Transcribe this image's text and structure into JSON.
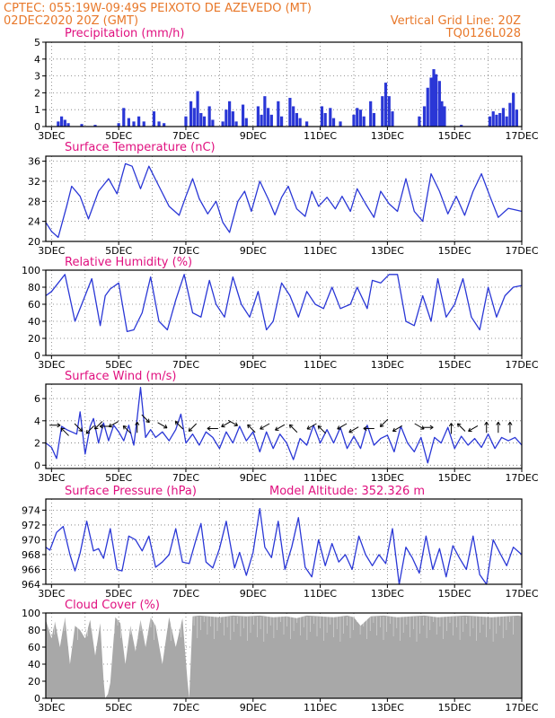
{
  "header": {
    "line1_left": "CPTEC:   055:19W-09:49S   PEIXOTO DE AZEVEDO (MT)",
    "line2_left": "02DEC2020 20Z (GMT)",
    "line2_right": "Vertical Grid Line: 20Z",
    "line3_right": "TQ0126L028"
  },
  "colors": {
    "header": "#e8782a",
    "title": "#e0107f",
    "series": "#2a37d6",
    "cloud": "#a8a8a8",
    "arrow": "#000000"
  },
  "x_axis": {
    "start_day": 2.83,
    "end_day": 17.0,
    "ticks": [
      {
        "day": 3,
        "label": "3DEC"
      },
      {
        "day": 5,
        "label": "5DEC"
      },
      {
        "day": 7,
        "label": "7DEC"
      },
      {
        "day": 9,
        "label": "9DEC"
      },
      {
        "day": 11,
        "label": "11DEC"
      },
      {
        "day": 13,
        "label": "13DEC"
      },
      {
        "day": 15,
        "label": "15DEC"
      },
      {
        "day": 17,
        "label": "17DEC"
      }
    ]
  },
  "chart_data": [
    {
      "id": "precip",
      "type": "bar",
      "title": "Precipitation (mm/h)",
      "ylim": [
        0,
        5
      ],
      "yticks": [
        0,
        1,
        2,
        3,
        4,
        5
      ],
      "bars": [
        [
          3.2,
          0.3
        ],
        [
          3.3,
          0.6
        ],
        [
          3.4,
          0.4
        ],
        [
          3.5,
          0.2
        ],
        [
          3.9,
          0.15
        ],
        [
          4.3,
          0.1
        ],
        [
          5.0,
          0.2
        ],
        [
          5.15,
          1.1
        ],
        [
          5.3,
          0.5
        ],
        [
          5.45,
          0.3
        ],
        [
          5.6,
          0.6
        ],
        [
          5.75,
          0.3
        ],
        [
          6.05,
          0.9
        ],
        [
          6.2,
          0.3
        ],
        [
          6.35,
          0.2
        ],
        [
          7.0,
          0.6
        ],
        [
          7.15,
          1.5
        ],
        [
          7.25,
          1.1
        ],
        [
          7.35,
          2.1
        ],
        [
          7.45,
          0.8
        ],
        [
          7.55,
          0.6
        ],
        [
          7.7,
          1.2
        ],
        [
          7.8,
          0.4
        ],
        [
          8.1,
          0.3
        ],
        [
          8.2,
          1.0
        ],
        [
          8.3,
          1.5
        ],
        [
          8.4,
          0.9
        ],
        [
          8.5,
          0.3
        ],
        [
          8.7,
          1.3
        ],
        [
          8.8,
          0.5
        ],
        [
          9.15,
          1.2
        ],
        [
          9.25,
          0.7
        ],
        [
          9.35,
          1.8
        ],
        [
          9.45,
          1.1
        ],
        [
          9.55,
          0.7
        ],
        [
          9.75,
          1.5
        ],
        [
          9.85,
          0.6
        ],
        [
          10.1,
          1.7
        ],
        [
          10.2,
          1.2
        ],
        [
          10.3,
          0.8
        ],
        [
          10.4,
          0.5
        ],
        [
          10.6,
          0.3
        ],
        [
          11.05,
          1.2
        ],
        [
          11.15,
          0.8
        ],
        [
          11.3,
          1.1
        ],
        [
          11.4,
          0.5
        ],
        [
          11.6,
          0.3
        ],
        [
          12.0,
          0.7
        ],
        [
          12.1,
          1.1
        ],
        [
          12.2,
          1.0
        ],
        [
          12.3,
          0.6
        ],
        [
          12.5,
          1.5
        ],
        [
          12.6,
          0.8
        ],
        [
          12.85,
          1.8
        ],
        [
          12.95,
          2.6
        ],
        [
          13.05,
          1.8
        ],
        [
          13.15,
          0.9
        ],
        [
          13.95,
          0.6
        ],
        [
          14.1,
          1.2
        ],
        [
          14.2,
          2.3
        ],
        [
          14.3,
          2.9
        ],
        [
          14.38,
          3.4
        ],
        [
          14.45,
          3.1
        ],
        [
          14.55,
          2.7
        ],
        [
          14.62,
          1.5
        ],
        [
          14.7,
          1.2
        ],
        [
          15.2,
          0.1
        ],
        [
          16.05,
          0.6
        ],
        [
          16.15,
          0.9
        ],
        [
          16.25,
          0.7
        ],
        [
          16.35,
          0.8
        ],
        [
          16.45,
          1.1
        ],
        [
          16.55,
          0.6
        ],
        [
          16.65,
          1.4
        ],
        [
          16.75,
          2.0
        ],
        [
          16.85,
          1.0
        ]
      ]
    },
    {
      "id": "temp",
      "type": "line",
      "title": "Surface Temperature (nC)",
      "ylim": [
        20,
        37
      ],
      "yticks": [
        20,
        24,
        28,
        32,
        36
      ],
      "x": [
        2.83,
        3.0,
        3.2,
        3.45,
        3.6,
        3.85,
        4.1,
        4.4,
        4.7,
        4.95,
        5.2,
        5.4,
        5.65,
        5.9,
        6.2,
        6.5,
        6.8,
        7.0,
        7.2,
        7.4,
        7.65,
        7.9,
        8.1,
        8.3,
        8.55,
        8.75,
        8.95,
        9.2,
        9.45,
        9.65,
        9.85,
        10.05,
        10.3,
        10.55,
        10.75,
        10.95,
        11.2,
        11.45,
        11.65,
        11.9,
        12.1,
        12.35,
        12.6,
        12.8,
        13.05,
        13.3,
        13.55,
        13.8,
        14.05,
        14.3,
        14.55,
        14.8,
        15.05,
        15.3,
        15.55,
        15.8,
        16.05,
        16.3,
        16.6,
        16.8,
        17.0
      ],
      "y": [
        23.8,
        22.0,
        20.8,
        27.0,
        31.0,
        29.0,
        24.5,
        30.0,
        32.5,
        29.5,
        35.5,
        35.0,
        30.5,
        35.0,
        31.0,
        27.0,
        25.2,
        29.0,
        32.5,
        28.5,
        25.5,
        28.0,
        23.8,
        21.8,
        28.0,
        30.0,
        26.0,
        32.0,
        28.5,
        25.3,
        28.8,
        31.0,
        26.5,
        25.0,
        30.0,
        27.0,
        28.8,
        26.5,
        29.0,
        26.0,
        30.5,
        27.5,
        24.8,
        30.0,
        27.5,
        26.0,
        32.5,
        26.0,
        24.0,
        33.5,
        30.0,
        25.5,
        29.0,
        25.2,
        30.0,
        33.5,
        29.0,
        24.8,
        26.6,
        26.3,
        26.0
      ]
    },
    {
      "id": "rh",
      "type": "line",
      "title": "Relative Humidity (%)",
      "ylim": [
        0,
        100
      ],
      "yticks": [
        0,
        20,
        40,
        60,
        80,
        100
      ],
      "x": [
        2.83,
        3.0,
        3.2,
        3.4,
        3.7,
        3.95,
        4.2,
        4.45,
        4.6,
        4.75,
        5.0,
        5.25,
        5.45,
        5.7,
        5.95,
        6.2,
        6.45,
        6.7,
        6.95,
        7.2,
        7.45,
        7.7,
        7.9,
        8.15,
        8.4,
        8.65,
        8.9,
        9.15,
        9.4,
        9.6,
        9.85,
        10.1,
        10.35,
        10.6,
        10.85,
        11.1,
        11.35,
        11.6,
        11.9,
        12.1,
        12.4,
        12.55,
        12.8,
        13.05,
        13.3,
        13.55,
        13.8,
        14.05,
        14.3,
        14.5,
        14.75,
        15.0,
        15.25,
        15.5,
        15.75,
        16.0,
        16.25,
        16.5,
        16.75,
        17.0
      ],
      "y": [
        70,
        75,
        85,
        95,
        40,
        65,
        90,
        35,
        70,
        78,
        85,
        28,
        30,
        50,
        92,
        40,
        30,
        65,
        95,
        50,
        45,
        88,
        60,
        45,
        92,
        60,
        45,
        75,
        30,
        40,
        85,
        70,
        45,
        75,
        60,
        55,
        80,
        55,
        60,
        80,
        55,
        88,
        85,
        95,
        95,
        40,
        35,
        70,
        40,
        90,
        45,
        60,
        90,
        45,
        30,
        80,
        45,
        70,
        80,
        82
      ]
    },
    {
      "id": "wind",
      "type": "line",
      "title": "Surface Wind (m/s)",
      "ylim": [
        -0.3,
        7.3
      ],
      "yticks": [
        0,
        2,
        4,
        6
      ],
      "x": [
        2.83,
        3.0,
        3.15,
        3.3,
        3.45,
        3.6,
        3.75,
        3.85,
        4.0,
        4.15,
        4.25,
        4.4,
        4.55,
        4.7,
        4.85,
        5.0,
        5.15,
        5.3,
        5.45,
        5.55,
        5.65,
        5.8,
        5.95,
        6.1,
        6.3,
        6.5,
        6.7,
        6.85,
        7.0,
        7.2,
        7.4,
        7.6,
        7.8,
        8.0,
        8.2,
        8.4,
        8.6,
        8.8,
        9.0,
        9.2,
        9.4,
        9.6,
        9.8,
        10.0,
        10.2,
        10.4,
        10.6,
        10.8,
        11.0,
        11.2,
        11.4,
        11.6,
        11.8,
        12.0,
        12.2,
        12.4,
        12.6,
        12.8,
        13.0,
        13.2,
        13.4,
        13.6,
        13.8,
        14.0,
        14.2,
        14.4,
        14.6,
        14.8,
        15.0,
        15.2,
        15.4,
        15.6,
        15.8,
        16.0,
        16.2,
        16.4,
        16.6,
        16.8,
        17.0
      ],
      "y": [
        2.0,
        1.6,
        0.6,
        3.5,
        3.2,
        3.0,
        2.8,
        4.8,
        1.0,
        3.5,
        4.2,
        2.0,
        3.8,
        2.2,
        3.6,
        3.0,
        2.2,
        3.6,
        1.8,
        4.2,
        7.0,
        2.5,
        3.2,
        2.5,
        3.0,
        2.2,
        3.2,
        4.6,
        2.0,
        2.8,
        1.8,
        3.0,
        2.5,
        1.5,
        3.0,
        2.0,
        3.5,
        2.2,
        3.0,
        1.2,
        3.0,
        1.5,
        2.8,
        2.0,
        0.5,
        2.4,
        1.8,
        3.6,
        2.0,
        3.2,
        2.0,
        3.4,
        1.5,
        2.6,
        1.5,
        3.6,
        1.8,
        2.4,
        2.7,
        1.2,
        3.5,
        2.0,
        1.2,
        2.5,
        0.2,
        2.5,
        2.0,
        3.4,
        1.5,
        2.6,
        1.8,
        2.4,
        1.6,
        2.8,
        1.5,
        2.5,
        2.2,
        2.5,
        1.8
      ],
      "arrows": [
        [
          3.1,
          3.6,
          0
        ],
        [
          3.4,
          3.0,
          135
        ],
        [
          3.8,
          3.4,
          -45
        ],
        [
          4.15,
          3.2,
          -135
        ],
        [
          4.4,
          3.6,
          -135
        ],
        [
          4.6,
          3.5,
          180
        ],
        [
          4.85,
          3.7,
          -150
        ],
        [
          5.25,
          3.2,
          135
        ],
        [
          5.55,
          3.4,
          90
        ],
        [
          5.8,
          4.2,
          -45
        ],
        [
          6.3,
          3.6,
          -30
        ],
        [
          6.8,
          3.6,
          135
        ],
        [
          7.2,
          3.4,
          -135
        ],
        [
          7.8,
          3.3,
          180
        ],
        [
          8.2,
          3.7,
          -150
        ],
        [
          8.4,
          3.8,
          -30
        ],
        [
          8.95,
          3.3,
          135
        ],
        [
          9.35,
          3.5,
          -150
        ],
        [
          9.8,
          3.4,
          -150
        ],
        [
          10.2,
          3.3,
          135
        ],
        [
          10.75,
          3.5,
          -150
        ],
        [
          11.05,
          3.2,
          135
        ],
        [
          11.65,
          3.5,
          -150
        ],
        [
          12.0,
          3.2,
          -150
        ],
        [
          12.45,
          3.3,
          180
        ],
        [
          12.9,
          3.8,
          -135
        ],
        [
          13.3,
          3.3,
          -150
        ],
        [
          13.95,
          3.5,
          -30
        ],
        [
          14.2,
          3.4,
          0
        ],
        [
          14.9,
          3.3,
          90
        ],
        [
          15.2,
          3.4,
          135
        ],
        [
          15.55,
          3.3,
          -150
        ],
        [
          15.95,
          3.4,
          90
        ],
        [
          16.3,
          3.4,
          90
        ],
        [
          16.65,
          3.4,
          90
        ]
      ]
    },
    {
      "id": "pressure",
      "type": "line",
      "title": "Surface Pressure (hPa)",
      "annotation": "Model Altitude: 352.326 m",
      "ylim": [
        964,
        975.5
      ],
      "yticks": [
        964,
        966,
        968,
        970,
        972,
        974
      ],
      "x": [
        2.83,
        2.95,
        3.15,
        3.35,
        3.55,
        3.7,
        3.85,
        4.05,
        4.25,
        4.4,
        4.55,
        4.75,
        4.95,
        5.1,
        5.3,
        5.5,
        5.7,
        5.9,
        6.1,
        6.3,
        6.5,
        6.7,
        6.9,
        7.1,
        7.3,
        7.45,
        7.6,
        7.8,
        8.0,
        8.2,
        8.45,
        8.6,
        8.8,
        9.0,
        9.2,
        9.35,
        9.55,
        9.75,
        9.95,
        10.15,
        10.35,
        10.55,
        10.75,
        10.95,
        11.15,
        11.35,
        11.55,
        11.75,
        11.95,
        12.15,
        12.35,
        12.55,
        12.75,
        12.95,
        13.15,
        13.35,
        13.55,
        13.75,
        13.95,
        14.15,
        14.35,
        14.55,
        14.75,
        14.95,
        15.15,
        15.35,
        15.55,
        15.75,
        15.95,
        16.15,
        16.35,
        16.55,
        16.75,
        17.0
      ],
      "y": [
        969,
        968.6,
        971,
        971.8,
        968,
        965.8,
        968.2,
        972.5,
        968.5,
        968.8,
        967.5,
        971.5,
        966,
        965.8,
        970.5,
        970,
        968.5,
        970.5,
        966.3,
        967,
        968,
        971.5,
        967,
        966.8,
        970,
        972.2,
        967,
        966.2,
        968.8,
        972.5,
        966.2,
        968.3,
        965.2,
        968.3,
        974.2,
        969,
        967.6,
        972.5,
        966,
        969,
        973,
        966.3,
        965,
        970,
        966.5,
        969.5,
        967,
        968,
        966,
        970.5,
        968,
        966.5,
        968,
        966.8,
        971.5,
        963.8,
        969,
        967.5,
        965.5,
        970.5,
        966,
        968.8,
        965,
        969.2,
        967.5,
        966,
        970.5,
        965.3,
        963.8,
        970,
        968.2,
        966.5,
        969,
        968
      ]
    },
    {
      "id": "cloud",
      "type": "area",
      "title": "Cloud Cover (%)",
      "ylim": [
        0,
        100
      ],
      "yticks": [
        0,
        20,
        40,
        60,
        80,
        100
      ],
      "x": [
        2.83,
        3.0,
        3.1,
        3.25,
        3.4,
        3.55,
        3.7,
        3.85,
        4.0,
        4.15,
        4.3,
        4.45,
        4.55,
        4.6,
        4.68,
        4.75,
        4.9,
        5.05,
        5.2,
        5.35,
        5.5,
        5.65,
        5.8,
        5.95,
        6.1,
        6.3,
        6.5,
        6.7,
        6.9,
        7.05,
        7.1,
        7.2,
        7.4,
        7.7,
        8.0,
        8.4,
        8.8,
        9.2,
        9.6,
        10.0,
        10.3,
        10.6,
        11.0,
        11.4,
        11.8,
        12.0,
        12.2,
        12.5,
        12.9,
        13.3,
        13.7,
        14.1,
        14.5,
        14.9,
        15.3,
        15.7,
        16.1,
        16.5,
        16.9,
        17.0
      ],
      "y": [
        92,
        70,
        90,
        60,
        95,
        40,
        85,
        80,
        70,
        92,
        50,
        88,
        22,
        0,
        5,
        18,
        95,
        88,
        40,
        85,
        55,
        92,
        60,
        95,
        85,
        40,
        95,
        60,
        94,
        20,
        0,
        96,
        97,
        96,
        95,
        97,
        96,
        97,
        95,
        96,
        94,
        97,
        96,
        95,
        97,
        95,
        85,
        96,
        97,
        95,
        96,
        97,
        95,
        96,
        97,
        96,
        95,
        96,
        97,
        96
      ]
    }
  ]
}
